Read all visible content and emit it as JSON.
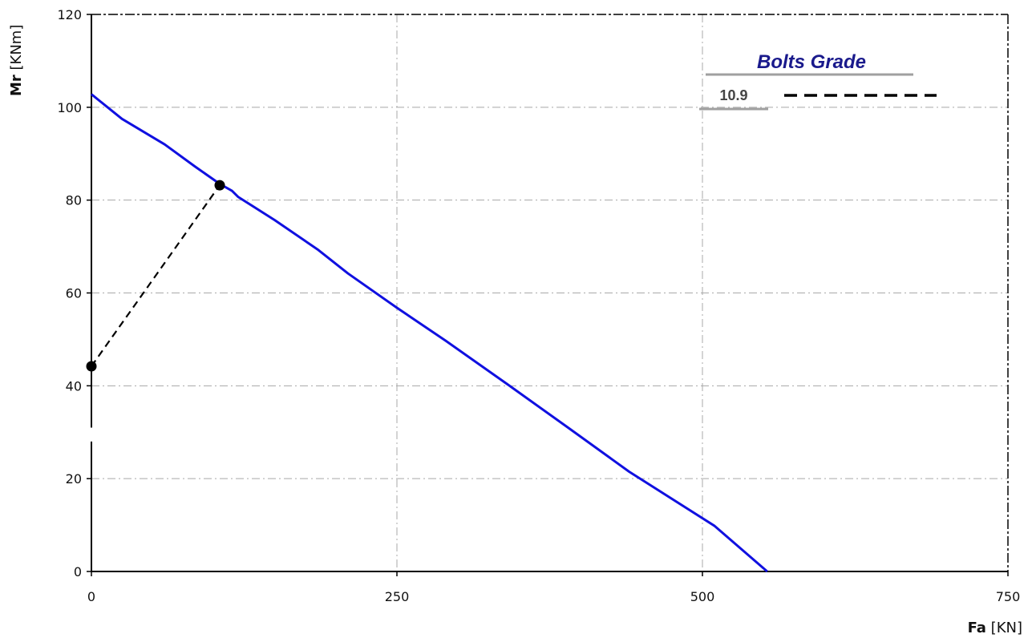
{
  "chart_data": {
    "type": "line",
    "xlabel_bold": "Fa",
    "xlabel_unit": " [KN]",
    "ylabel_bold": "Mr",
    "ylabel_unit": " [KNm]",
    "xlim": [
      0,
      750
    ],
    "ylim": [
      0,
      120
    ],
    "x_ticks": [
      "0",
      "250",
      "500",
      "750"
    ],
    "y_ticks": [
      "0",
      "20",
      "40",
      "60",
      "80",
      "100",
      "120"
    ],
    "grid": true,
    "legend": {
      "title": "Bolts Grade",
      "entries": [
        {
          "label": "10.9"
        }
      ]
    },
    "series": [
      {
        "style": "solid",
        "color": "#1010e0",
        "x": [
          0,
          25,
          60,
          85,
          105,
          115,
          120,
          150,
          185,
          210,
          250,
          290,
          340,
          390,
          440,
          510,
          553
        ],
        "y": [
          102.8,
          97.5,
          92,
          87.2,
          83.5,
          82,
          80.7,
          75.7,
          69.4,
          64.2,
          56.8,
          49.7,
          40.4,
          31,
          21.5,
          9.8,
          0
        ]
      },
      {
        "style": "dashed",
        "color": "#000000",
        "markers": true,
        "x": [
          0,
          105
        ],
        "y": [
          44.2,
          83.2
        ]
      }
    ]
  }
}
